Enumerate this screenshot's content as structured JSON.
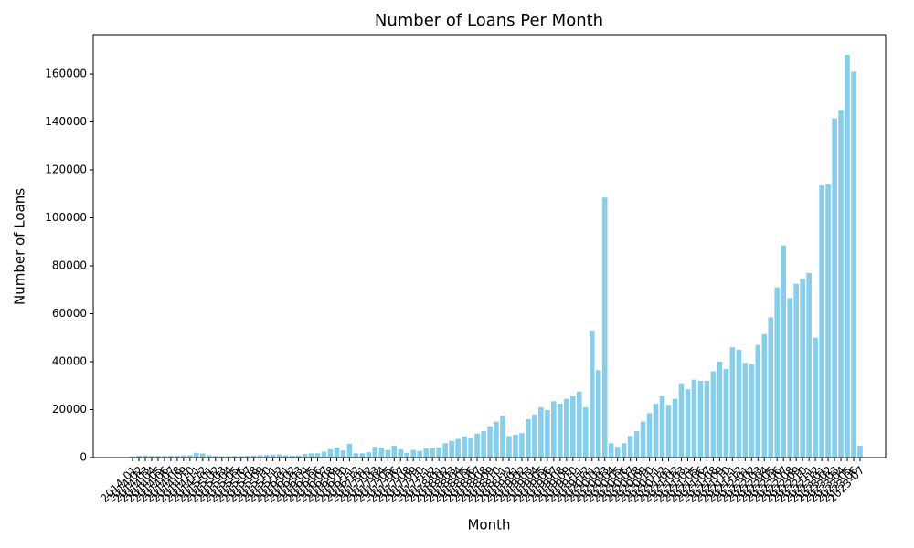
{
  "chart_data": {
    "type": "bar",
    "title": "Number of Loans Per Month",
    "x_label": "Month",
    "y_label": "Number of Loans",
    "color": "#87ceeb",
    "categories": [
      "2014-01",
      "2014-02",
      "2014-03",
      "2014-04",
      "2014-05",
      "2014-06",
      "2014-07",
      "2014-08",
      "2014-09",
      "2014-10",
      "2014-11",
      "2014-12",
      "2015-01",
      "2015-02",
      "2015-03",
      "2015-04",
      "2015-05",
      "2015-06",
      "2015-07",
      "2015-08",
      "2015-09",
      "2015-10",
      "2015-11",
      "2015-12",
      "2016-01",
      "2016-02",
      "2016-03",
      "2016-04",
      "2016-05",
      "2016-06",
      "2016-07",
      "2016-08",
      "2016-09",
      "2016-10",
      "2016-11",
      "2016-12",
      "2017-01",
      "2017-02",
      "2017-03",
      "2017-04",
      "2017-05",
      "2017-06",
      "2017-07",
      "2017-08",
      "2017-09",
      "2017-10",
      "2017-11",
      "2017-12",
      "2018-01",
      "2018-02",
      "2018-03",
      "2018-04",
      "2018-05",
      "2018-06",
      "2018-07",
      "2018-08",
      "2018-09",
      "2018-10",
      "2018-11",
      "2018-12",
      "2019-01",
      "2019-02",
      "2019-03",
      "2019-04",
      "2019-05",
      "2019-06",
      "2019-07",
      "2019-08",
      "2019-09",
      "2019-10",
      "2019-11",
      "2019-12",
      "2020-01",
      "2020-02",
      "2020-03",
      "2020-04",
      "2020-05",
      "2020-06",
      "2020-07",
      "2020-08",
      "2020-09",
      "2020-10",
      "2020-11",
      "2020-12",
      "2021-01",
      "2021-02",
      "2021-03",
      "2021-04",
      "2021-05",
      "2021-06",
      "2021-07",
      "2021-08",
      "2021-09",
      "2021-10",
      "2021-11",
      "2021-12",
      "2022-01",
      "2022-02",
      "2022-03",
      "2022-04",
      "2022-05",
      "2022-06",
      "2022-07",
      "2022-08",
      "2022-09",
      "2022-10",
      "2022-11",
      "2022-12",
      "2023-01",
      "2023-02",
      "2023-03",
      "2023-04",
      "2023-05",
      "2023-06",
      "2023-07"
    ],
    "values": [
      500,
      800,
      900,
      700,
      700,
      700,
      800,
      800,
      900,
      1000,
      2000,
      1700,
      1000,
      700,
      600,
      600,
      700,
      700,
      800,
      900,
      1000,
      1100,
      1200,
      1300,
      1000,
      800,
      900,
      1500,
      1800,
      1800,
      2500,
      3500,
      4200,
      3000,
      5800,
      1800,
      1800,
      2200,
      4500,
      4200,
      3200,
      5000,
      3500,
      2000,
      3200,
      2800,
      3800,
      4000,
      4200,
      6000,
      7000,
      7800,
      8800,
      8000,
      10000,
      11000,
      13000,
      15000,
      17500,
      9000,
      9500,
      10200,
      16000,
      18000,
      21000,
      19800,
      23500,
      22500,
      24500,
      25500,
      27500,
      21000,
      53000,
      36500,
      108500,
      6000,
      4500,
      6000,
      9000,
      11000,
      15000,
      18500,
      22500,
      25500,
      22000,
      24500,
      31000,
      28500,
      32500,
      32000,
      32000,
      36000,
      40000,
      37000,
      46000,
      45000,
      39500,
      39000,
      47000,
      51500,
      58500,
      71000,
      88500,
      66500,
      72500,
      74500,
      77000,
      50000,
      113500,
      114000,
      141500,
      145000,
      168000,
      161000,
      5000
    ],
    "ylim": [
      0,
      176400
    ],
    "yticks": [
      0,
      20000,
      40000,
      60000,
      80000,
      100000,
      120000,
      140000,
      160000
    ]
  }
}
